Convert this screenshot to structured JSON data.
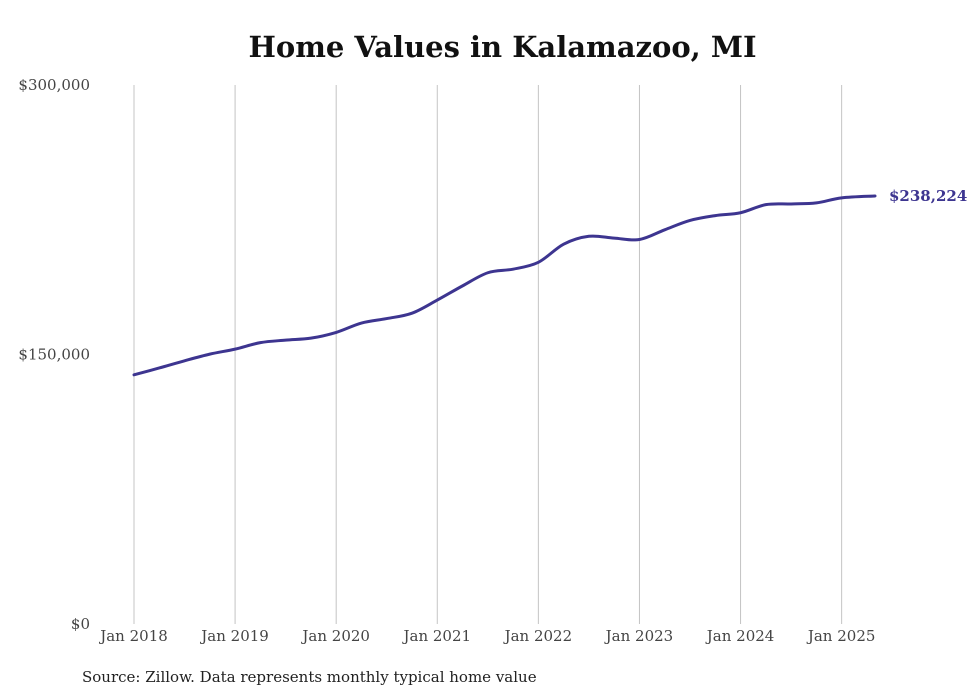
{
  "chart_data": {
    "type": "line",
    "title": "Home Values in Kalamazoo, MI",
    "xlabel": "",
    "ylabel": "",
    "y_ticks": [
      {
        "value": 0,
        "label": "$0"
      },
      {
        "value": 150000,
        "label": "$150,000"
      },
      {
        "value": 300000,
        "label": "$300,000"
      }
    ],
    "x_ticks": [
      {
        "value": 2018.0,
        "label": "Jan 2018"
      },
      {
        "value": 2019.0,
        "label": "Jan 2019"
      },
      {
        "value": 2020.0,
        "label": "Jan 2020"
      },
      {
        "value": 2021.0,
        "label": "Jan 2021"
      },
      {
        "value": 2022.0,
        "label": "Jan 2022"
      },
      {
        "value": 2023.0,
        "label": "Jan 2023"
      },
      {
        "value": 2024.0,
        "label": "Jan 2024"
      },
      {
        "value": 2025.0,
        "label": "Jan 2025"
      }
    ],
    "xlim": [
      2018.0,
      2025.33
    ],
    "ylim": [
      0,
      300000
    ],
    "grid": {
      "vertical": true,
      "horizontal": false
    },
    "series": [
      {
        "color": "#3d3590",
        "x": [
          2018.0,
          2018.25,
          2018.5,
          2018.75,
          2019.0,
          2019.25,
          2019.5,
          2019.75,
          2020.0,
          2020.25,
          2020.5,
          2020.75,
          2021.0,
          2021.25,
          2021.5,
          2021.75,
          2022.0,
          2022.25,
          2022.5,
          2022.75,
          2023.0,
          2023.25,
          2023.5,
          2023.75,
          2024.0,
          2024.25,
          2024.5,
          2024.75,
          2025.0,
          2025.33
        ],
        "y": [
          138700,
          142500,
          146500,
          150200,
          153000,
          156600,
          158000,
          159100,
          162300,
          167500,
          170000,
          173000,
          180300,
          188200,
          195500,
          197500,
          201300,
          211400,
          215800,
          214800,
          214000,
          219400,
          224600,
          227300,
          228900,
          233400,
          233800,
          234400,
          237200,
          238224
        ],
        "end_label": "$238,224"
      }
    ]
  },
  "source_note": "Source: Zillow. Data represents monthly typical home value"
}
